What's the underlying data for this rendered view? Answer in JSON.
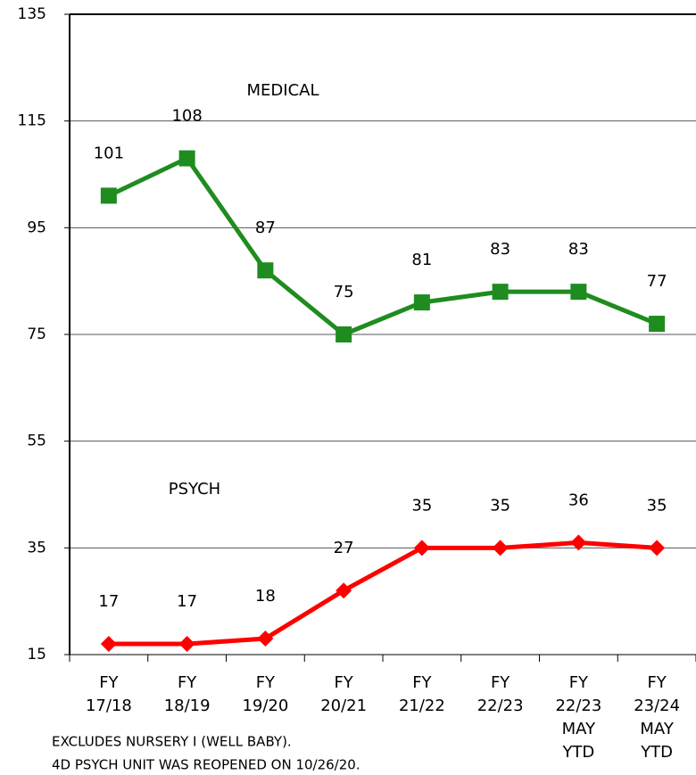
{
  "chart_data": {
    "type": "line",
    "categories": [
      [
        "FY",
        "17/18"
      ],
      [
        "FY",
        "18/19"
      ],
      [
        "FY",
        "19/20"
      ],
      [
        "FY",
        "20/21"
      ],
      [
        "FY",
        "21/22"
      ],
      [
        "FY",
        "22/23"
      ],
      [
        "FY",
        "22/23",
        "MAY",
        "YTD"
      ],
      [
        "FY",
        "23/24",
        "MAY",
        "YTD"
      ]
    ],
    "series": [
      {
        "name": "MEDICAL",
        "color": "#1f8c1f",
        "marker": "square",
        "values": [
          101,
          108,
          87,
          75,
          81,
          83,
          83,
          77
        ]
      },
      {
        "name": "PSYCH",
        "color": "#ff0000",
        "marker": "diamond",
        "values": [
          17,
          17,
          18,
          27,
          35,
          35,
          36,
          35
        ]
      }
    ],
    "ylim": [
      15,
      135
    ],
    "yticks": [
      15,
      35,
      55,
      75,
      95,
      115,
      135
    ],
    "grid": true,
    "notes": [
      "EXCLUDES NURSERY I (WELL BABY).",
      "4D PSYCH UNIT WAS REOPENED ON 10/26/20."
    ]
  }
}
